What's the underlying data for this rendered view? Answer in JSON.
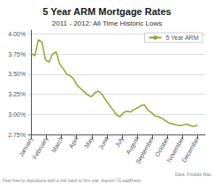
{
  "chart_data": {
    "type": "line",
    "title": "5 Year ARM Mortgage Rates",
    "subtitle": "2011 - 2012: All Time Historic Lows",
    "annotations": [
      "Feel free to reproduce with a link back to this site, thanks! ©LeadPress",
      "Data: Freddie Mac"
    ],
    "x": [
      0,
      0.234043,
      0.468085,
      0.702128,
      0.93617,
      1.170213,
      1.404255,
      1.638298,
      1.87234,
      2.106383,
      2.340426,
      2.574468,
      2.808511,
      3.042553,
      3.276596,
      3.510638,
      3.744681,
      3.978723,
      4.212766,
      4.446809,
      4.680851,
      4.914894,
      5.148936,
      5.382979,
      5.617021,
      5.851064,
      6.085106,
      6.319149,
      6.553191,
      6.787234,
      7.021277,
      7.255319,
      7.489362,
      7.723404,
      7.957447,
      8.191489,
      8.425532,
      8.659574,
      8.893617,
      9.12766,
      9.361702,
      9.595745,
      9.829787,
      10.06383,
      10.297872,
      10.531915,
      10.765957,
      11
    ],
    "series": [
      {
        "name": "5 Year ARM",
        "color": "#8aaa28",
        "values": [
          3.76,
          3.73,
          3.93,
          3.9,
          3.68,
          3.65,
          3.75,
          3.78,
          3.63,
          3.57,
          3.5,
          3.48,
          3.44,
          3.36,
          3.32,
          3.28,
          3.24,
          3.22,
          3.27,
          3.29,
          3.25,
          3.18,
          3.12,
          3.06,
          3.0,
          2.97,
          3.02,
          3.04,
          3.03,
          3.06,
          3.08,
          3.11,
          3.12,
          3.05,
          3.02,
          2.98,
          2.97,
          2.95,
          2.92,
          2.89,
          2.88,
          2.87,
          2.86,
          2.87,
          2.88,
          2.86,
          2.85,
          2.87
        ]
      }
    ],
    "xlim": [
      -0.2,
      11.5
    ],
    "xticks": [
      {
        "value": 0,
        "label": "January"
      },
      {
        "value": 1,
        "label": "February"
      },
      {
        "value": 2,
        "label": "March"
      },
      {
        "value": 3,
        "label": "April"
      },
      {
        "value": 4,
        "label": "May"
      },
      {
        "value": 5,
        "label": "June"
      },
      {
        "value": 6,
        "label": "July"
      },
      {
        "value": 7,
        "label": "August"
      },
      {
        "value": 8,
        "label": "September"
      },
      {
        "value": 9,
        "label": "October"
      },
      {
        "value": 10,
        "label": "November"
      },
      {
        "value": 11,
        "label": "December"
      }
    ],
    "ylim": [
      2.75,
      4.05
    ],
    "yticks": [
      {
        "value": 2.75,
        "label": "2.75%"
      },
      {
        "value": 3.0,
        "label": "3.00%"
      },
      {
        "value": 3.25,
        "label": "3.25%"
      },
      {
        "value": 3.5,
        "label": "3.50%"
      },
      {
        "value": 3.75,
        "label": "3.75%"
      },
      {
        "value": 4.0,
        "label": "4.00%"
      }
    ],
    "grid": true,
    "legend": "upper right"
  }
}
